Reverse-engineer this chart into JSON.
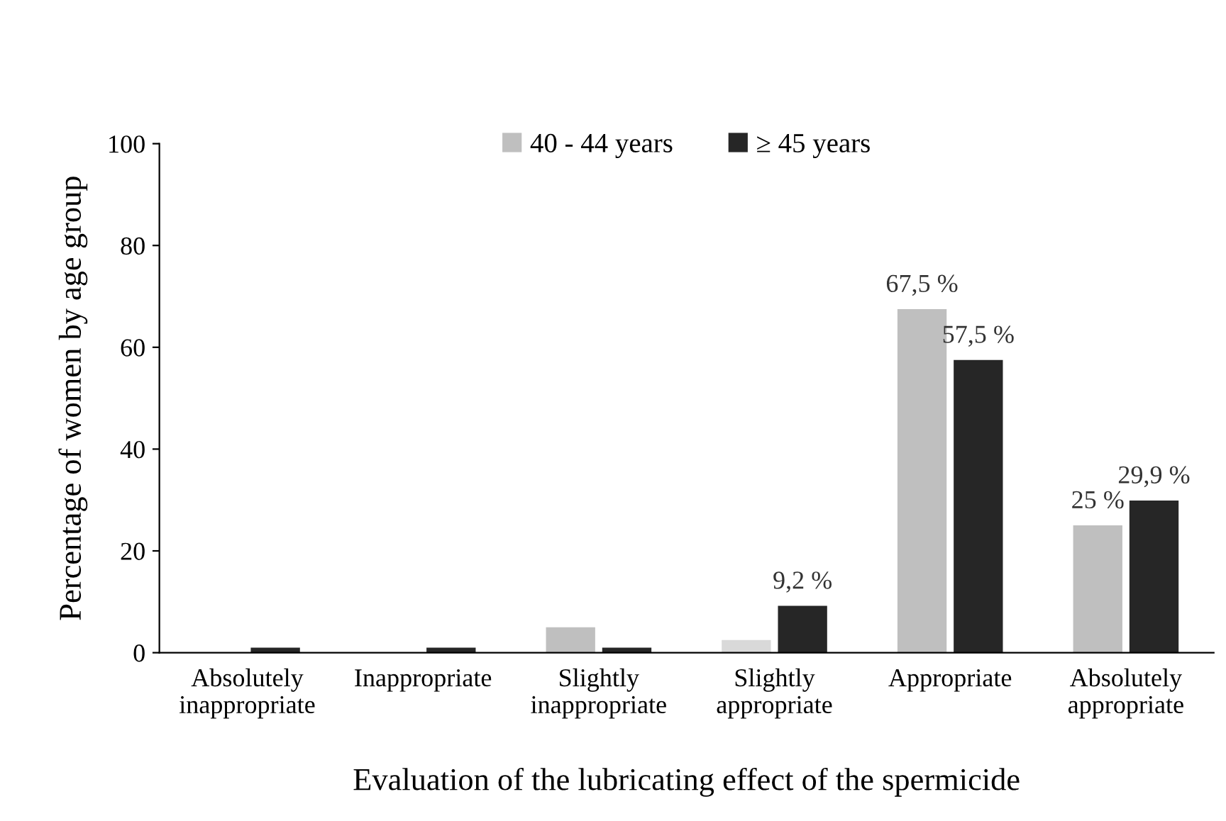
{
  "chart_data": {
    "type": "bar",
    "xlabel": "Evaluation of the lubricating effect of the spermicide",
    "ylabel": "Percentage of women by age group",
    "categories": [
      "Absolutely\ninappropriate",
      "Inappropriate",
      "Slightly\ninappropriate",
      "Slightly\nappropriate",
      "Appropriate",
      "Absolutely\nappropriate"
    ],
    "series": [
      {
        "name": "40 - 44 years",
        "color": "#bfbfbf",
        "colors": [
          "#bfbfbf",
          "#bfbfbf",
          "#bfbfbf",
          "#d9d9d9",
          "#bfbfbf",
          "#bfbfbf"
        ],
        "values": [
          0,
          0,
          5,
          2.5,
          67.5,
          25
        ],
        "value_labels": [
          null,
          null,
          null,
          null,
          "67,5 %",
          "25 %"
        ]
      },
      {
        "name": "≥ 45 years",
        "color": "#262626",
        "values": [
          1,
          1,
          1,
          9.2,
          57.5,
          29.9
        ],
        "value_labels": [
          null,
          null,
          null,
          "9,2 %",
          "57,5 %",
          "29,9 %"
        ]
      }
    ],
    "ylim": [
      0,
      100
    ],
    "yticks": [
      0,
      20,
      40,
      60,
      80,
      100
    ],
    "grid": false,
    "legend": "top"
  }
}
